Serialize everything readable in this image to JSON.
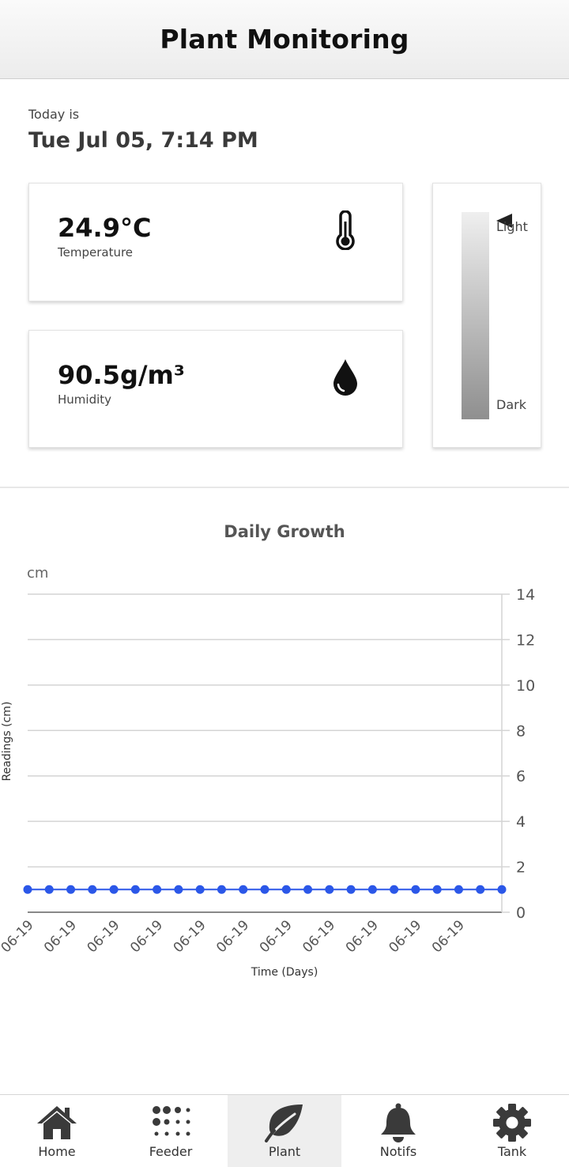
{
  "header": {
    "title": "Plant Monitoring"
  },
  "today": {
    "label": "Today is",
    "date": "Tue Jul 05, 7:14 PM"
  },
  "temperature": {
    "value": "24.9°C",
    "label": "Temperature",
    "icon": "thermometer-icon"
  },
  "humidity": {
    "value": "90.5g/m³",
    "label": "Humidity",
    "icon": "water-drop-icon"
  },
  "light": {
    "top_label": "Light",
    "bottom_label": "Dark",
    "level": 1.0
  },
  "chart": {
    "title": "Daily Growth",
    "unit_label": "cm"
  },
  "chart_data": {
    "type": "line",
    "title": "Daily Growth",
    "xlabel": "Time (Days)",
    "ylabel": "Readings (cm)",
    "ylim": [
      0,
      14
    ],
    "yticks": [
      0,
      2,
      4,
      6,
      8,
      10,
      12,
      14
    ],
    "grid": true,
    "x_tick_labels": [
      "06-19",
      "06-19",
      "06-19",
      "06-19",
      "06-19",
      "06-19",
      "06-19",
      "06-19",
      "06-19",
      "06-19",
      "06-19"
    ],
    "series": [
      {
        "color": "#2b57e8",
        "values": [
          1,
          1,
          1,
          1,
          1,
          1,
          1,
          1,
          1,
          1,
          1,
          1,
          1,
          1,
          1,
          1,
          1,
          1,
          1,
          1,
          1,
          1,
          1
        ]
      }
    ]
  },
  "nav": {
    "items": [
      {
        "label": "Home",
        "icon": "home-icon"
      },
      {
        "label": "Feeder",
        "icon": "dots-grid-icon"
      },
      {
        "label": "Plant",
        "icon": "leaf-icon",
        "active": true
      },
      {
        "label": "Notifs",
        "icon": "bell-icon"
      },
      {
        "label": "Tank",
        "icon": "gear-icon"
      }
    ]
  }
}
